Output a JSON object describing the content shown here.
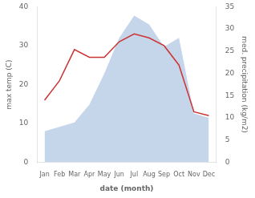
{
  "chart_data": {
    "type": "line",
    "xlabel": "date (month)",
    "ylabel": "max temp (C)",
    "y2label": "med. precipitation (kg/m2)",
    "categories": [
      "Jan",
      "Feb",
      "Mar",
      "Apr",
      "May",
      "Jun",
      "Jul",
      "Aug",
      "Sep",
      "Oct",
      "Nov",
      "Dec"
    ],
    "series": [
      {
        "type": "area",
        "axis": "y2",
        "color": "#c5d5ea",
        "values": [
          7,
          8,
          9,
          13,
          20,
          28,
          33,
          31,
          26,
          28,
          11,
          10
        ]
      },
      {
        "type": "line",
        "color": "#cc3333",
        "values": [
          16,
          21,
          29,
          27,
          27,
          31,
          33,
          32,
          30,
          25,
          13,
          12
        ]
      }
    ],
    "ylim": [
      0,
      40
    ],
    "yticks": [
      0,
      10,
      20,
      30,
      40
    ],
    "y2lim": [
      0,
      35
    ],
    "y2ticks": [
      0,
      5,
      10,
      15,
      20,
      25,
      30,
      35
    ],
    "grid": false
  }
}
